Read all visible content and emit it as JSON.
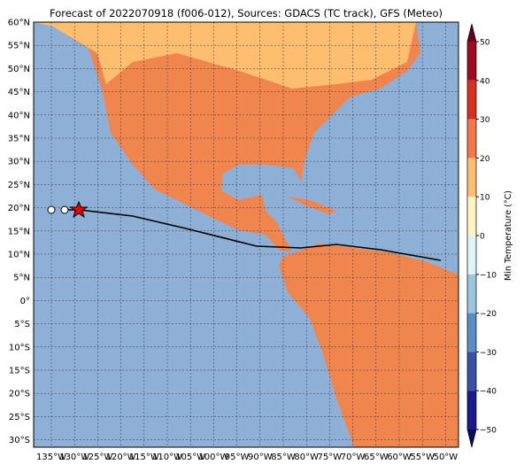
{
  "title": "Forecast of 2022070918 (f006-012), Sources: GDACS (TC track), GFS (Meteo)",
  "lat_labels": [
    "60°N",
    "55°N",
    "50°N",
    "45°N",
    "40°N",
    "35°N",
    "30°N",
    "25°N",
    "20°N",
    "15°N",
    "10°N",
    "5°N",
    "0°",
    "5°S",
    "10°S",
    "15°S",
    "20°S",
    "25°S",
    "30°S"
  ],
  "lon_labels": [
    "135°W",
    "130°W",
    "125°W",
    "120°W",
    "115°W",
    "110°W",
    "105°W",
    "100°W",
    "95°W",
    "90°W",
    "85°W",
    "80°W",
    "75°W",
    "70°W",
    "65°W",
    "60°W",
    "55°W",
    "50°W"
  ],
  "colorbar": {
    "label": "Min Temperature (°C)",
    "ticks": [
      50,
      40,
      30,
      20,
      10,
      0,
      {
        "value": -10,
        "label": "−10"
      },
      {
        "value": -20,
        "label": "−20"
      },
      {
        "value": -30,
        "label": "−30"
      },
      {
        "value": -40,
        "label": "−40"
      },
      {
        "value": -50,
        "label": "−50"
      }
    ]
  }
}
